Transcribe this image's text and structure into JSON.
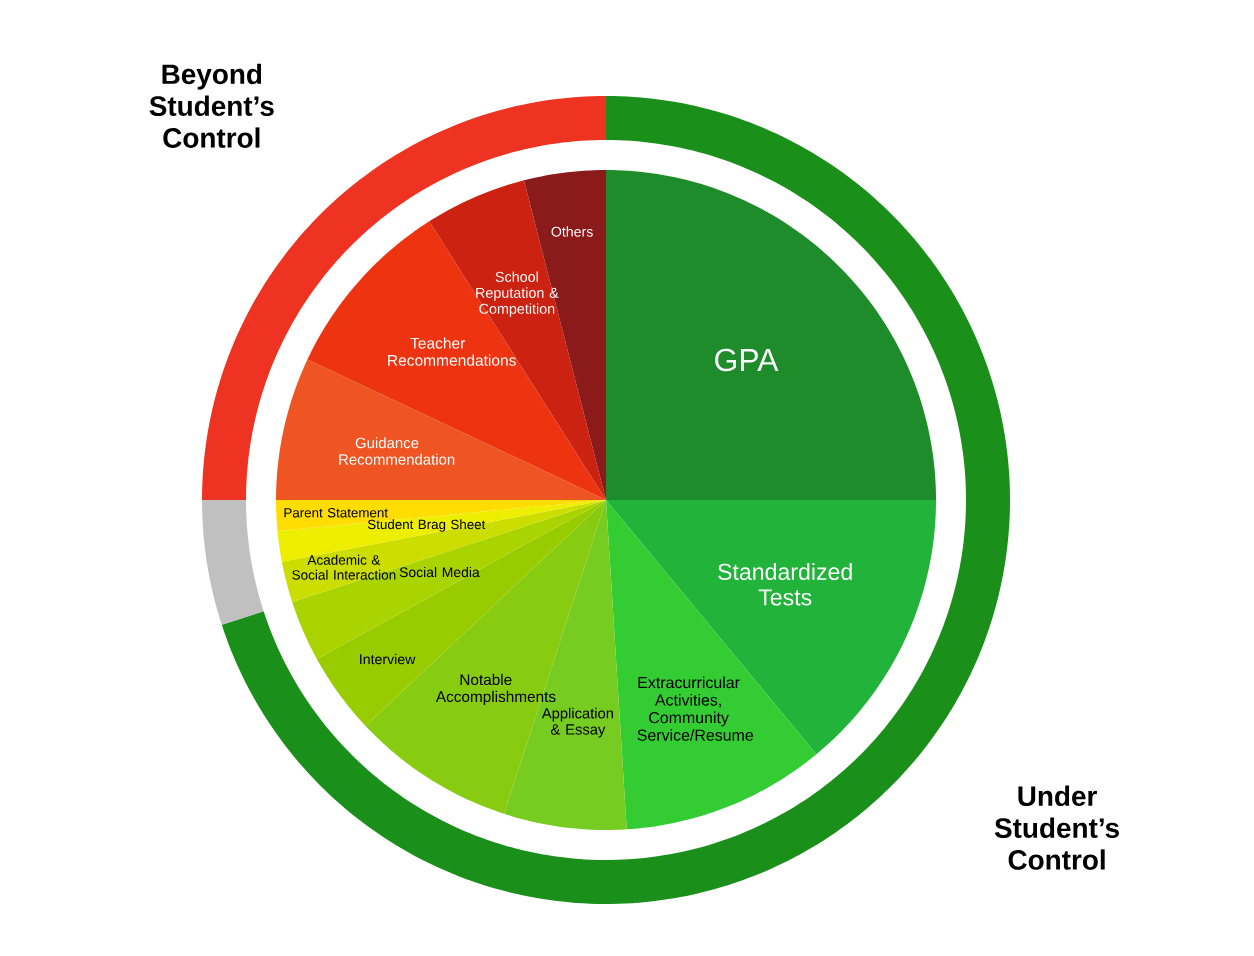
{
  "chart_data": [
    {
      "type": "pie",
      "categories": [
        "GPA",
        "Standardized Tests",
        "Extracurricular Activities, Community Service/Resume",
        "Application & Essay",
        "Notable Accomplishments",
        "Interview",
        "Social Media",
        "Academic & Social Interaction",
        "Student Brag Sheet",
        "Parent Statement",
        "Guidance Recommendation",
        "Teacher Recommendations",
        "School Reputation & Competition",
        "Others"
      ],
      "values": [
        25,
        14,
        10,
        6,
        8,
        4,
        3,
        2,
        1.5,
        1.5,
        7,
        9,
        5,
        4
      ],
      "colors": [
        "#1e8c2a",
        "#22b33a",
        "#33cc33",
        "#77cc22",
        "#88cc11",
        "#99cc00",
        "#aad400",
        "#ccdd00",
        "#eeee00",
        "#ffdd00",
        "#ee5522",
        "#ee3311",
        "#cc2211",
        "#8b1a1a"
      ]
    },
    {
      "type": "donut",
      "categories": [
        "Under Student’s Control",
        null,
        "Beyond Student’s Control"
      ],
      "values": [
        70,
        5,
        25
      ],
      "colors": [
        "#1a8f1a",
        "#c0c0c0",
        "#ee3322"
      ]
    }
  ]
}
